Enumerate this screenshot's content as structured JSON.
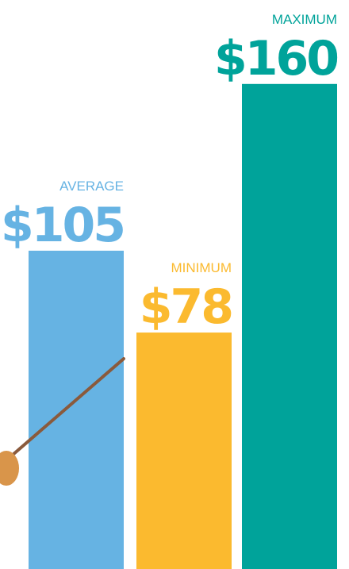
{
  "chart_data": {
    "type": "bar",
    "categories": [
      "AVERAGE",
      "MINIMUM",
      "MAXIMUM"
    ],
    "values": [
      105,
      78,
      160
    ],
    "value_labels": [
      "$105",
      "$78",
      "$160"
    ],
    "colors": [
      "#66b3e3",
      "#fbba2f",
      "#00a39a"
    ]
  }
}
